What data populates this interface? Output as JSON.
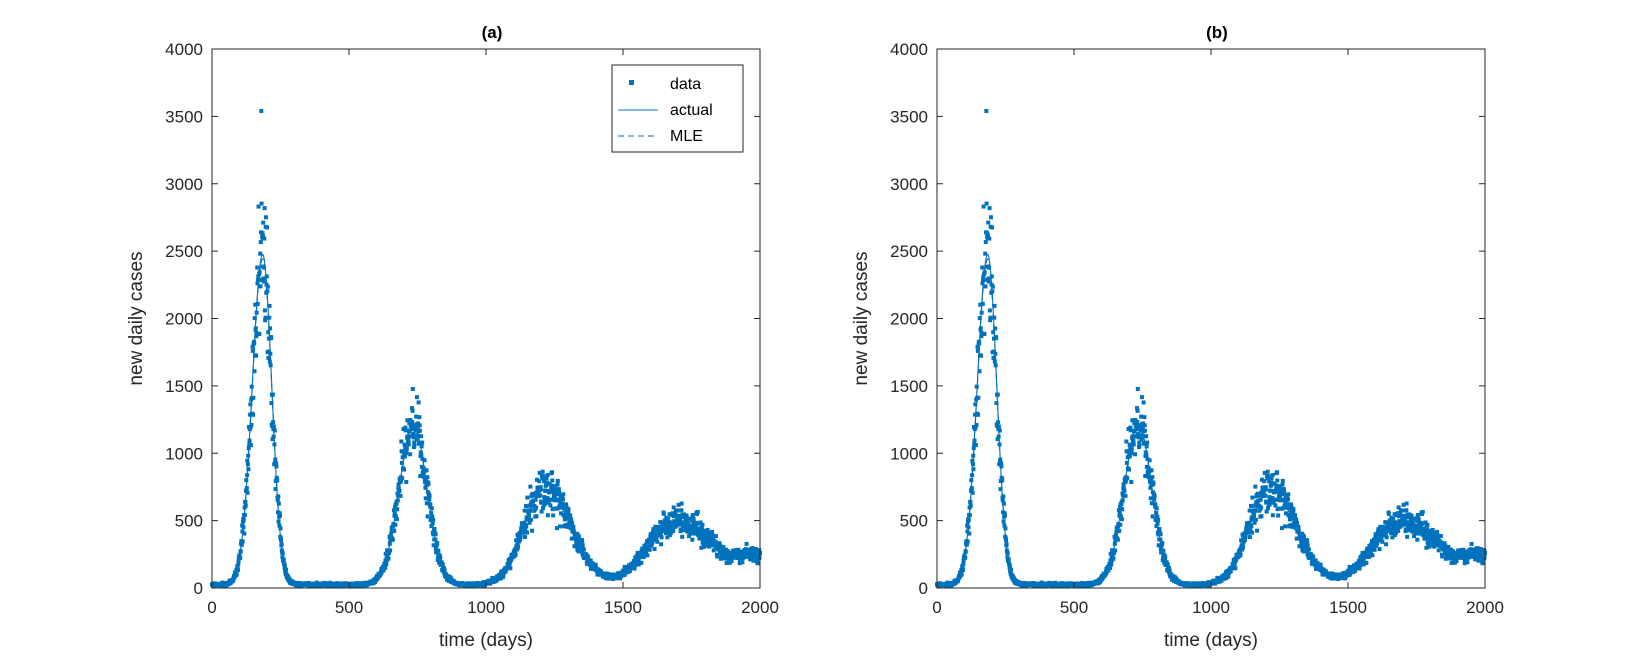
{
  "colors": {
    "data": "#0072BD",
    "actual": "#0072BD",
    "mle": "#0072BD",
    "axis": "#262626",
    "text": "#262626"
  },
  "legend": {
    "entries": [
      "data",
      "actual",
      "MLE"
    ],
    "location": "top-right of panel (a)"
  },
  "chart_data": [
    {
      "type": "scatter",
      "title": "(a)",
      "xlabel": "time (days)",
      "ylabel": "new daily cases",
      "xlim": [
        0,
        2000
      ],
      "ylim": [
        0,
        4000
      ],
      "xticks": [
        0,
        500,
        1000,
        1500,
        2000
      ],
      "yticks": [
        0,
        500,
        1000,
        1500,
        2000,
        2500,
        3000,
        3500,
        4000
      ],
      "grid": false,
      "show_legend": true,
      "series": [
        {
          "name": "data",
          "style": "markers"
        },
        {
          "name": "actual",
          "style": "solid-line"
        },
        {
          "name": "MLE",
          "style": "dashed-line"
        }
      ],
      "model_waves": [
        {
          "peak_day": 185,
          "peak": 2450,
          "rise_width": 38,
          "fall_width": 33
        },
        {
          "peak_day": 735,
          "peak": 1180,
          "rise_width": 52,
          "fall_width": 50
        },
        {
          "peak_day": 1215,
          "peak": 710,
          "rise_width": 75,
          "fall_width": 95
        },
        {
          "peak_day": 1690,
          "peak": 470,
          "rise_width": 100,
          "fall_width": 150
        }
      ],
      "baseline": 25,
      "tail": {
        "from_day": 1750,
        "to_value": 250
      },
      "noise": {
        "relative_sd": 0.17,
        "seed": 7
      },
      "n_days": 2000,
      "data_peak": {
        "x": 180,
        "y": 3540
      }
    },
    {
      "type": "scatter",
      "title": "(b)",
      "xlabel": "time (days)",
      "ylabel": "new daily cases",
      "xlim": [
        0,
        2000
      ],
      "ylim": [
        0,
        4000
      ],
      "xticks": [
        0,
        500,
        1000,
        1500,
        2000
      ],
      "yticks": [
        0,
        500,
        1000,
        1500,
        2000,
        2500,
        3000,
        3500,
        4000
      ],
      "grid": false,
      "show_legend": false,
      "series": [
        {
          "name": "data",
          "style": "markers"
        },
        {
          "name": "actual",
          "style": "solid-line"
        },
        {
          "name": "MLE",
          "style": "dashed-line"
        }
      ],
      "model_waves": [
        {
          "peak_day": 185,
          "peak": 2450,
          "rise_width": 38,
          "fall_width": 33
        },
        {
          "peak_day": 735,
          "peak": 1180,
          "rise_width": 52,
          "fall_width": 50
        },
        {
          "peak_day": 1215,
          "peak": 710,
          "rise_width": 75,
          "fall_width": 95
        },
        {
          "peak_day": 1690,
          "peak": 470,
          "rise_width": 100,
          "fall_width": 150
        }
      ],
      "baseline": 25,
      "tail": {
        "from_day": 1750,
        "to_value": 250
      },
      "noise": {
        "relative_sd": 0.17,
        "seed": 7
      },
      "n_days": 2000,
      "data_peak": {
        "x": 180,
        "y": 3540
      }
    }
  ]
}
